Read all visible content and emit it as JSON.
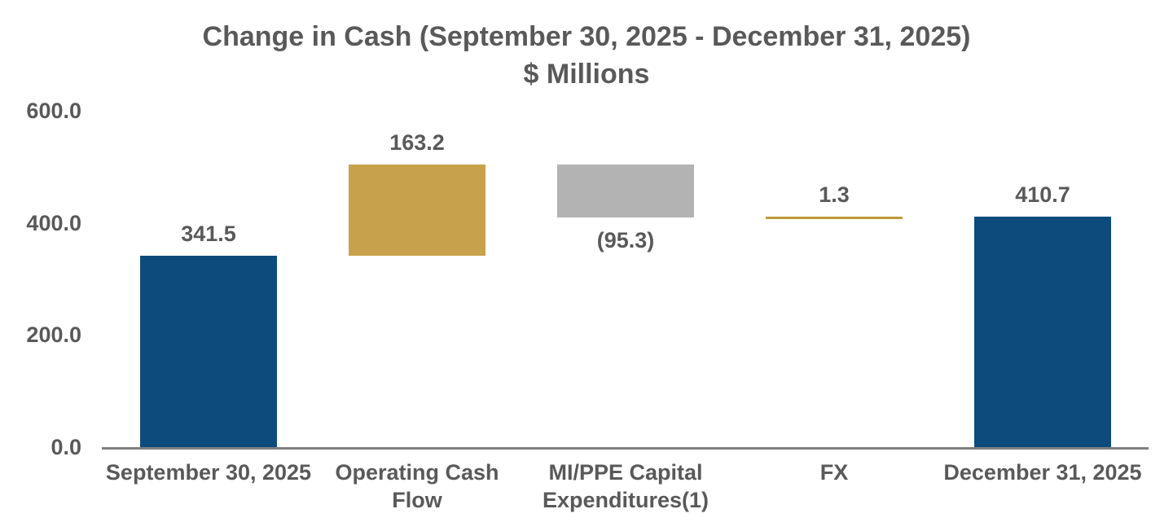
{
  "chart_data": {
    "type": "bar",
    "subtype": "waterfall",
    "title": "Change in Cash (September 30, 2025 - December 31, 2025)",
    "subtitle": "$ Millions",
    "categories": [
      "September 30, 2025",
      "Operating Cash Flow",
      "MI/PPE Capital Expenditures(1)",
      "FX",
      "December 31, 2025"
    ],
    "bars": [
      {
        "category": "September 30, 2025",
        "category_lines": [
          "September 30, 2025"
        ],
        "value": 341.5,
        "display_value": "341.5",
        "start": 0,
        "end": 341.5,
        "kind": "total",
        "color_key": "navy",
        "value_label_position": "above"
      },
      {
        "category": "Operating Cash Flow",
        "category_lines": [
          "Operating Cash",
          "Flow"
        ],
        "value": 163.2,
        "display_value": "163.2",
        "start": 341.5,
        "end": 504.7,
        "kind": "increase",
        "color_key": "gold",
        "value_label_position": "above"
      },
      {
        "category": "MI/PPE Capital Expenditures(1)",
        "category_lines": [
          "MI/PPE Capital",
          "Expenditures(1)"
        ],
        "value": -95.3,
        "display_value": "(95.3)",
        "start": 504.7,
        "end": 409.4,
        "kind": "decrease",
        "color_key": "gray",
        "value_label_position": "below"
      },
      {
        "category": "FX",
        "category_lines": [
          "FX"
        ],
        "value": 1.3,
        "display_value": "1.3",
        "start": 409.4,
        "end": 410.7,
        "kind": "increase",
        "color_key": "gold_line",
        "value_label_position": "above"
      },
      {
        "category": "December 31, 2025",
        "category_lines": [
          "December 31, 2025"
        ],
        "value": 410.7,
        "display_value": "410.7",
        "start": 0,
        "end": 410.7,
        "kind": "total",
        "color_key": "navy",
        "value_label_position": "above"
      }
    ],
    "y_axis": {
      "min": 0,
      "max": 600,
      "tick_interval": 200,
      "ticks": [
        {
          "value": 600,
          "label": "600.0"
        },
        {
          "value": 400,
          "label": "400.0"
        },
        {
          "value": 200,
          "label": "200.0"
        },
        {
          "value": 0,
          "label": "0.0"
        }
      ],
      "gridlines": false
    },
    "colors": {
      "navy": "#0d4b7c",
      "gold": "#c8a24b",
      "gray": "#b3b3b3",
      "gold_line": "#bd9a3a",
      "text": "#595959",
      "axis_line": "#808080",
      "background": "#ffffff"
    }
  }
}
